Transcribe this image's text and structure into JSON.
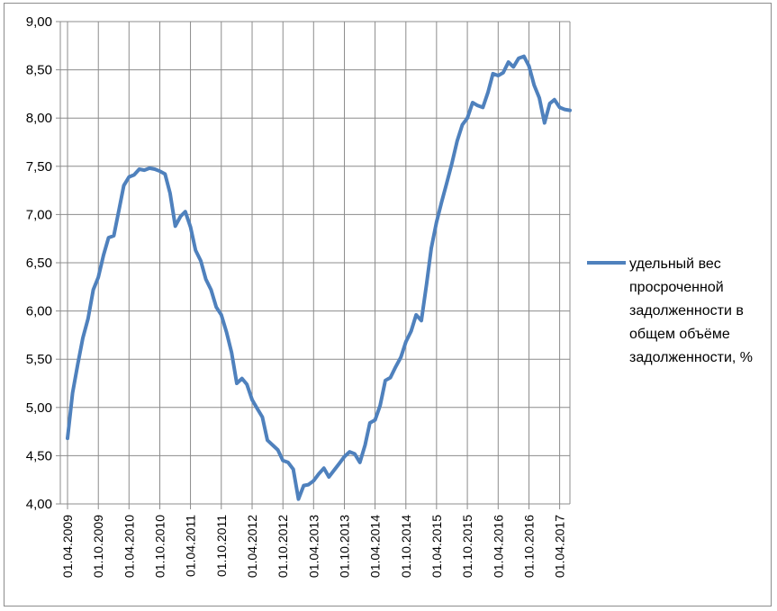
{
  "chart_data": {
    "type": "line",
    "title": "",
    "xlabel": "",
    "ylabel": "",
    "ylim": [
      4.0,
      9.0
    ],
    "y_ticks": [
      "4,00",
      "4,50",
      "5,00",
      "5,50",
      "6,00",
      "6,50",
      "7,00",
      "7,50",
      "8,00",
      "8,50",
      "9,00"
    ],
    "x_ticks": [
      "01.04.2009",
      "01.10.2009",
      "01.04.2010",
      "01.10.2010",
      "01.04.2011",
      "01.10.2011",
      "01.04.2012",
      "01.10.2012",
      "01.04.2013",
      "01.10.2013",
      "01.04.2014",
      "01.10.2014",
      "01.04.2015",
      "01.10.2015",
      "01.04.2016",
      "01.10.2016",
      "01.04.2017"
    ],
    "grid": true,
    "legend_position": "right",
    "series": [
      {
        "name": "удельный вес просроченной задолженности в общем объёме задолженности, %",
        "color": "#4f81bd",
        "x": [
          "2009-04-01",
          "2009-05-01",
          "2009-06-01",
          "2009-07-01",
          "2009-08-01",
          "2009-09-01",
          "2009-10-01",
          "2009-11-01",
          "2009-12-01",
          "2010-01-01",
          "2010-02-01",
          "2010-03-01",
          "2010-04-01",
          "2010-05-01",
          "2010-06-01",
          "2010-07-01",
          "2010-08-01",
          "2010-09-01",
          "2010-10-01",
          "2010-11-01",
          "2010-12-01",
          "2011-01-01",
          "2011-02-01",
          "2011-03-01",
          "2011-04-01",
          "2011-05-01",
          "2011-06-01",
          "2011-07-01",
          "2011-08-01",
          "2011-09-01",
          "2011-10-01",
          "2011-11-01",
          "2011-12-01",
          "2012-01-01",
          "2012-02-01",
          "2012-03-01",
          "2012-04-01",
          "2012-05-01",
          "2012-06-01",
          "2012-07-01",
          "2012-08-01",
          "2012-09-01",
          "2012-10-01",
          "2012-11-01",
          "2012-12-01",
          "2013-01-01",
          "2013-02-01",
          "2013-03-01",
          "2013-04-01",
          "2013-05-01",
          "2013-06-01",
          "2013-07-01",
          "2013-08-01",
          "2013-09-01",
          "2013-10-01",
          "2013-11-01",
          "2013-12-01",
          "2014-01-01",
          "2014-02-01",
          "2014-03-01",
          "2014-04-01",
          "2014-05-01",
          "2014-06-01",
          "2014-07-01",
          "2014-08-01",
          "2014-09-01",
          "2014-10-01",
          "2014-11-01",
          "2014-12-01",
          "2015-01-01",
          "2015-02-01",
          "2015-03-01",
          "2015-04-01",
          "2015-05-01",
          "2015-06-01",
          "2015-07-01",
          "2015-08-01",
          "2015-09-01",
          "2015-10-01",
          "2015-11-01",
          "2015-12-01",
          "2016-01-01",
          "2016-02-01",
          "2016-03-01",
          "2016-04-01",
          "2016-05-01",
          "2016-06-01",
          "2016-07-01",
          "2016-08-01",
          "2016-09-01",
          "2016-10-01",
          "2016-11-01",
          "2016-12-01",
          "2017-01-01",
          "2017-02-01",
          "2017-03-01",
          "2017-04-01",
          "2017-05-01",
          "2017-06-01"
        ],
        "values": [
          4.68,
          5.15,
          5.45,
          5.72,
          5.92,
          6.22,
          6.35,
          6.58,
          6.76,
          6.78,
          7.05,
          7.3,
          7.39,
          7.41,
          7.47,
          7.46,
          7.48,
          7.47,
          7.45,
          7.42,
          7.22,
          6.88,
          6.98,
          7.03,
          6.87,
          6.63,
          6.52,
          6.33,
          6.22,
          6.04,
          5.96,
          5.78,
          5.57,
          5.25,
          5.3,
          5.24,
          5.08,
          4.99,
          4.9,
          4.66,
          4.61,
          4.56,
          4.45,
          4.43,
          4.36,
          4.05,
          4.19,
          4.2,
          4.24,
          4.31,
          4.37,
          4.28,
          4.35,
          4.42,
          4.49,
          4.54,
          4.52,
          4.43,
          4.61,
          4.84,
          4.87,
          5.02,
          5.28,
          5.31,
          5.42,
          5.52,
          5.68,
          5.79,
          5.96,
          5.9,
          6.28,
          6.65,
          6.92,
          7.13,
          7.33,
          7.53,
          7.76,
          7.93,
          8.0,
          8.16,
          8.13,
          8.11,
          8.27,
          8.46,
          8.44,
          8.47,
          8.58,
          8.53,
          8.62,
          8.64,
          8.54,
          8.34,
          8.21,
          7.95,
          8.15,
          8.19,
          8.11,
          8.09,
          8.08
        ]
      }
    ]
  }
}
